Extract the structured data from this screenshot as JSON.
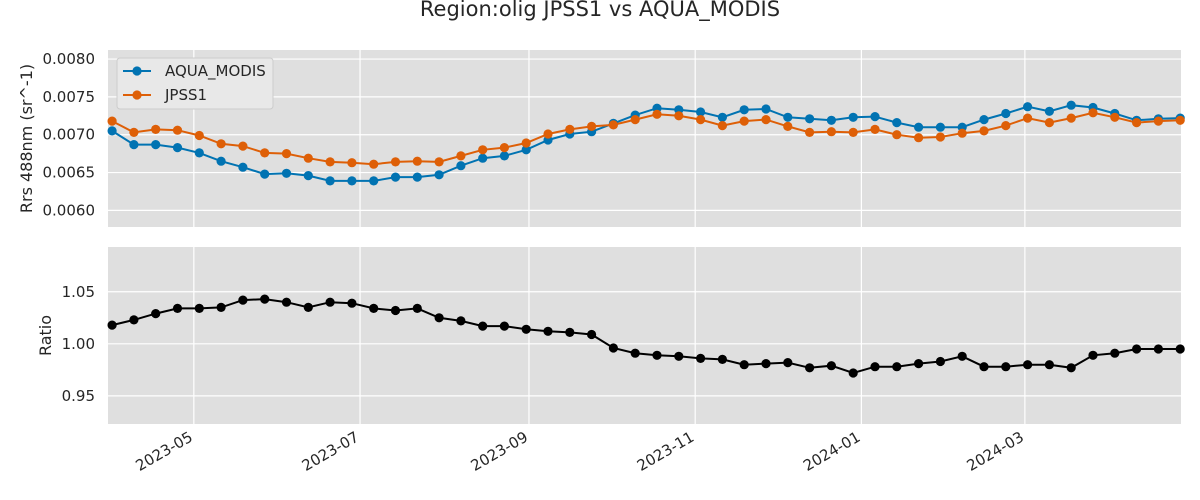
{
  "chart_data": {
    "title": "Region:olig JPSS1 vs AQUA_MODIS",
    "x_dates": [
      "2023-04-01",
      "2023-04-09",
      "2023-04-17",
      "2023-04-25",
      "2023-05-03",
      "2023-05-11",
      "2023-05-19",
      "2023-05-27",
      "2023-06-04",
      "2023-06-12",
      "2023-06-20",
      "2023-06-28",
      "2023-07-06",
      "2023-07-14",
      "2023-07-22",
      "2023-07-30",
      "2023-08-07",
      "2023-08-15",
      "2023-08-23",
      "2023-08-31",
      "2023-09-08",
      "2023-09-16",
      "2023-09-24",
      "2023-10-02",
      "2023-10-10",
      "2023-10-18",
      "2023-10-26",
      "2023-11-03",
      "2023-11-11",
      "2023-11-19",
      "2023-11-27",
      "2023-12-05",
      "2023-12-13",
      "2023-12-21",
      "2023-12-29",
      "2024-01-06",
      "2024-01-14",
      "2024-01-22",
      "2024-01-30",
      "2024-02-07",
      "2024-02-15",
      "2024-02-23",
      "2024-03-02",
      "2024-03-10",
      "2024-03-18",
      "2024-03-26",
      "2024-04-03",
      "2024-04-11",
      "2024-04-19",
      "2024-04-27"
    ],
    "x_ticks": [
      "2023-05",
      "2023-07",
      "2023-09",
      "2023-11",
      "2024-01",
      "2024-03"
    ],
    "panels": [
      {
        "type": "line",
        "ylabel": "Rrs 488nm (sr^-1)",
        "ylim": [
          0.00578,
          0.00812
        ],
        "yticks": [
          "0.0060",
          "0.0065",
          "0.0070",
          "0.0075",
          "0.0080"
        ],
        "legend": "top-left",
        "series": [
          {
            "name": "AQUA_MODIS",
            "color": "#0173b2",
            "values": [
              0.00705,
              0.00687,
              0.00687,
              0.00683,
              0.00676,
              0.00665,
              0.00657,
              0.00648,
              0.00649,
              0.00646,
              0.00639,
              0.00639,
              0.00639,
              0.00644,
              0.00644,
              0.00647,
              0.00659,
              0.00669,
              0.00672,
              0.0068,
              0.00693,
              0.00701,
              0.00704,
              0.00715,
              0.00726,
              0.00735,
              0.00733,
              0.0073,
              0.00723,
              0.00733,
              0.00734,
              0.00723,
              0.00721,
              0.00719,
              0.00723,
              0.00724,
              0.00716,
              0.0071,
              0.0071,
              0.0071,
              0.0072,
              0.00728,
              0.00737,
              0.00731,
              0.00739,
              0.00736,
              0.00728,
              0.00719,
              0.00721,
              0.00722
            ]
          },
          {
            "name": "JPSS1",
            "color": "#de5f07",
            "values": [
              0.00718,
              0.00703,
              0.00707,
              0.00706,
              0.00699,
              0.00688,
              0.00685,
              0.00676,
              0.00675,
              0.00669,
              0.00664,
              0.00663,
              0.00661,
              0.00664,
              0.00665,
              0.00664,
              0.00672,
              0.0068,
              0.00683,
              0.00689,
              0.00701,
              0.00707,
              0.00711,
              0.00713,
              0.0072,
              0.00727,
              0.00725,
              0.0072,
              0.00712,
              0.00718,
              0.0072,
              0.00711,
              0.00703,
              0.00704,
              0.00703,
              0.00707,
              0.007,
              0.00696,
              0.00697,
              0.00702,
              0.00705,
              0.00712,
              0.00722,
              0.00716,
              0.00722,
              0.00729,
              0.00723,
              0.00716,
              0.00718,
              0.00719
            ]
          }
        ]
      },
      {
        "type": "line",
        "ylabel": "Ratio",
        "ylim": [
          0.923,
          1.093
        ],
        "yticks": [
          "0.95",
          "1.00",
          "1.05"
        ],
        "series": [
          {
            "color": "#000000",
            "values": [
              1.018,
              1.023,
              1.029,
              1.034,
              1.034,
              1.035,
              1.042,
              1.043,
              1.04,
              1.035,
              1.04,
              1.039,
              1.034,
              1.032,
              1.034,
              1.025,
              1.022,
              1.017,
              1.017,
              1.014,
              1.012,
              1.011,
              1.009,
              0.996,
              0.991,
              0.989,
              0.988,
              0.986,
              0.985,
              0.98,
              0.981,
              0.982,
              0.977,
              0.979,
              0.972,
              0.978,
              0.978,
              0.981,
              0.983,
              0.988,
              0.978,
              0.978,
              0.98,
              0.98,
              0.977,
              0.989,
              0.991,
              0.995,
              0.995,
              0.995
            ]
          }
        ]
      }
    ]
  }
}
